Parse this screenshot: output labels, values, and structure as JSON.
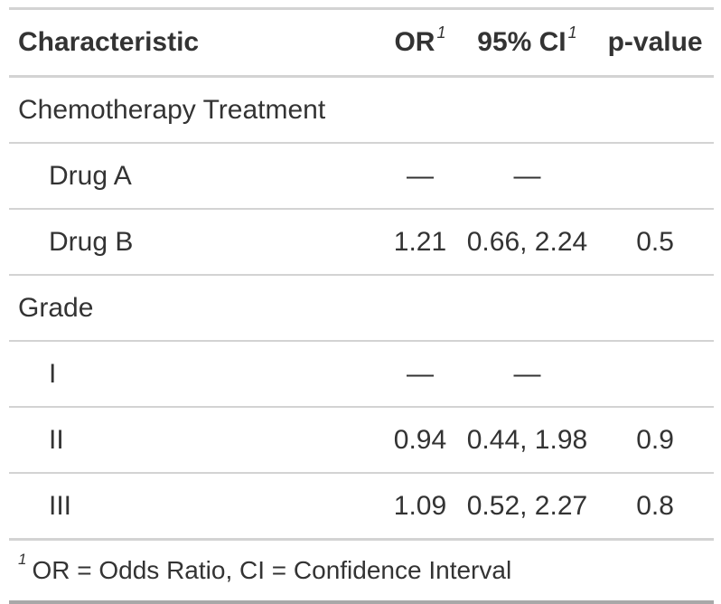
{
  "table": {
    "header": {
      "characteristic": "Characteristic",
      "or": "OR",
      "ci": "95% CI",
      "p": "p-value",
      "footnote_mark": "1"
    },
    "rows": [
      {
        "label": "Chemotherapy Treatment",
        "or": "",
        "ci": "",
        "p": ""
      },
      {
        "label": "Drug A",
        "or": "—",
        "ci": "—",
        "p": ""
      },
      {
        "label": "Drug B",
        "or": "1.21",
        "ci": "0.66, 2.24",
        "p": "0.5"
      },
      {
        "label": "Grade",
        "or": "",
        "ci": "",
        "p": ""
      },
      {
        "label": "I",
        "or": "—",
        "ci": "—",
        "p": ""
      },
      {
        "label": "II",
        "or": "0.94",
        "ci": "0.44, 1.98",
        "p": "0.9"
      },
      {
        "label": "III",
        "or": "1.09",
        "ci": "0.52, 2.27",
        "p": "0.8"
      }
    ],
    "footnote": {
      "mark": "1",
      "text": "OR = Odds Ratio, CI = Confidence Interval"
    }
  }
}
